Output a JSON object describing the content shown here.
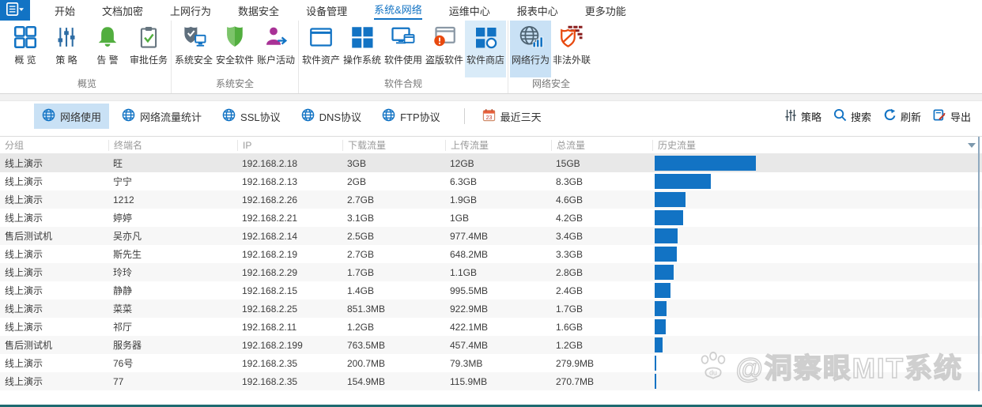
{
  "menu": {
    "tabs": [
      {
        "id": "start",
        "label": "开始",
        "active": false
      },
      {
        "id": "doc-encrypt",
        "label": "文档加密",
        "active": false
      },
      {
        "id": "web-behavior",
        "label": "上网行为",
        "active": false
      },
      {
        "id": "data-security",
        "label": "数据安全",
        "active": false
      },
      {
        "id": "device-mgmt",
        "label": "设备管理",
        "active": false
      },
      {
        "id": "system-network",
        "label": "系统&网络",
        "active": true
      },
      {
        "id": "ops-center",
        "label": "运维中心",
        "active": false
      },
      {
        "id": "report-center",
        "label": "报表中心",
        "active": false
      },
      {
        "id": "more-features",
        "label": "更多功能",
        "active": false
      }
    ]
  },
  "ribbon": {
    "groups": [
      {
        "id": "overview",
        "label": "概览",
        "buttons": [
          {
            "id": "overview",
            "label": "概 览",
            "icon": "overview-grid-icon"
          },
          {
            "id": "policy",
            "label": "策 略",
            "icon": "policy-sliders-icon"
          },
          {
            "id": "alert",
            "label": "告 警",
            "icon": "alert-bell-icon"
          },
          {
            "id": "approval-task",
            "label": "审批任务",
            "icon": "approval-clipboard-icon"
          }
        ]
      },
      {
        "id": "system-security",
        "label": "系统安全",
        "buttons": [
          {
            "id": "system-security",
            "label": "系统安全",
            "icon": "system-security-shield-icon"
          },
          {
            "id": "security-software",
            "label": "安全软件",
            "icon": "security-software-shield-icon"
          },
          {
            "id": "account-activity",
            "label": "账户活动",
            "icon": "account-activity-icon"
          }
        ]
      },
      {
        "id": "software-compliance",
        "label": "软件合规",
        "buttons": [
          {
            "id": "software-asset",
            "label": "软件资产",
            "icon": "software-asset-window-icon"
          },
          {
            "id": "operating-system",
            "label": "操作系统",
            "icon": "os-squares-icon"
          },
          {
            "id": "software-usage",
            "label": "软件使用",
            "icon": "software-usage-monitor-icon"
          },
          {
            "id": "pirated-software",
            "label": "盗版软件",
            "icon": "pirated-software-warning-icon"
          },
          {
            "id": "software-store",
            "label": "软件商店",
            "icon": "software-store-icon",
            "highlighted": true
          }
        ]
      },
      {
        "id": "network-security",
        "label": "网络安全",
        "buttons": [
          {
            "id": "network-behavior",
            "label": "网络行为",
            "icon": "network-behavior-globe-icon",
            "selected": true
          },
          {
            "id": "illegal-connection",
            "label": "非法外联",
            "icon": "illegal-connection-shield-icon"
          }
        ]
      }
    ]
  },
  "toolbar": {
    "views": [
      {
        "id": "network-usage",
        "label": "网络使用",
        "active": true
      },
      {
        "id": "traffic-stats",
        "label": "网络流量统计",
        "active": false
      },
      {
        "id": "ssl-protocol",
        "label": "SSL协议",
        "active": false
      },
      {
        "id": "dns-protocol",
        "label": "DNS协议",
        "active": false
      },
      {
        "id": "ftp-protocol",
        "label": "FTP协议",
        "active": false
      }
    ],
    "date_filter": "最近三天",
    "calendar_day": "23",
    "actions": [
      {
        "id": "policy",
        "label": "策略",
        "icon": "policy-small-icon"
      },
      {
        "id": "search",
        "label": "搜索",
        "icon": "search-icon"
      },
      {
        "id": "refresh",
        "label": "刷新",
        "icon": "refresh-icon"
      },
      {
        "id": "export",
        "label": "导出",
        "icon": "export-icon"
      }
    ]
  },
  "table": {
    "columns": [
      "分组",
      "终端名",
      "IP",
      "下载流量",
      "上传流量",
      "总流量",
      "历史流量"
    ],
    "rows": [
      {
        "group": "线上演示",
        "name": "旺",
        "ip": "192.168.2.18",
        "download": "3GB",
        "upload": "12GB",
        "total": "15GB",
        "total_mb": 15360,
        "selected": true
      },
      {
        "group": "线上演示",
        "name": "宁宁",
        "ip": "192.168.2.13",
        "download": "2GB",
        "upload": "6.3GB",
        "total": "8.3GB",
        "total_mb": 8499
      },
      {
        "group": "线上演示",
        "name": "1212",
        "ip": "192.168.2.26",
        "download": "2.7GB",
        "upload": "1.9GB",
        "total": "4.6GB",
        "total_mb": 4710
      },
      {
        "group": "线上演示",
        "name": "婷婷",
        "ip": "192.168.2.21",
        "download": "3.1GB",
        "upload": "1GB",
        "total": "4.2GB",
        "total_mb": 4300
      },
      {
        "group": "售后测试机",
        "name": "吴亦凡",
        "ip": "192.168.2.14",
        "download": "2.5GB",
        "upload": "977.4MB",
        "total": "3.4GB",
        "total_mb": 3481
      },
      {
        "group": "线上演示",
        "name": "斯先生",
        "ip": "192.168.2.19",
        "download": "2.7GB",
        "upload": "648.2MB",
        "total": "3.3GB",
        "total_mb": 3379
      },
      {
        "group": "线上演示",
        "name": "玲玲",
        "ip": "192.168.2.29",
        "download": "1.7GB",
        "upload": "1.1GB",
        "total": "2.8GB",
        "total_mb": 2867
      },
      {
        "group": "线上演示",
        "name": "静静",
        "ip": "192.168.2.15",
        "download": "1.4GB",
        "upload": "995.5MB",
        "total": "2.4GB",
        "total_mb": 2458
      },
      {
        "group": "线上演示",
        "name": "菜菜",
        "ip": "192.168.2.25",
        "download": "851.3MB",
        "upload": "922.9MB",
        "total": "1.7GB",
        "total_mb": 1741
      },
      {
        "group": "线上演示",
        "name": "祁厅",
        "ip": "192.168.2.11",
        "download": "1.2GB",
        "upload": "422.1MB",
        "total": "1.6GB",
        "total_mb": 1638
      },
      {
        "group": "售后测试机",
        "name": "服务器",
        "ip": "192.168.2.199",
        "download": "763.5MB",
        "upload": "457.4MB",
        "total": "1.2GB",
        "total_mb": 1229
      },
      {
        "group": "线上演示",
        "name": "76号",
        "ip": "192.168.2.35",
        "download": "200.7MB",
        "upload": "79.3MB",
        "total": "279.9MB",
        "total_mb": 280
      },
      {
        "group": "线上演示",
        "name": "77",
        "ip": "192.168.2.35",
        "download": "154.9MB",
        "upload": "115.9MB",
        "total": "270.7MB",
        "total_mb": 271
      }
    ]
  },
  "chart_data": {
    "type": "bar",
    "title": "历史流量",
    "orientation": "horizontal",
    "categories": [
      "旺",
      "宁宁",
      "1212",
      "婷婷",
      "吴亦凡",
      "斯先生",
      "玲玲",
      "静静",
      "菜菜",
      "祁厅",
      "服务器",
      "76号",
      "77"
    ],
    "values": [
      15360,
      8499,
      4710,
      4300,
      3481,
      3379,
      2867,
      2458,
      1741,
      1638,
      1229,
      280,
      271
    ],
    "unit": "MB",
    "xlim": [
      0,
      15360
    ],
    "note": "bar width proportional to 总流量"
  },
  "watermark": {
    "text": "@洞察眼MIT系统"
  },
  "colors": {
    "accent": "#1273c4",
    "bar": "#1273c4",
    "selected_bg": "#c9e1f5",
    "selected_row": "#e8e8e8",
    "bottom_strip": "#1e6a70",
    "alert_green": "#52ae3f",
    "warning_red": "#e8490f"
  }
}
